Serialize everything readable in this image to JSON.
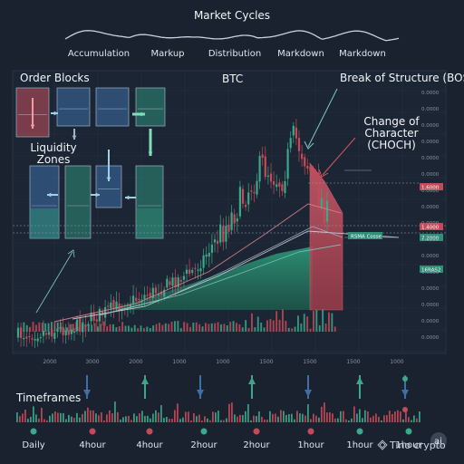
{
  "market_cycles": {
    "title": "Market Cycles",
    "phases": [
      "Accumulation",
      "Markup",
      "Distribution",
      "Markdown",
      "Markdown"
    ]
  },
  "labels": {
    "order_blocks": "Order Blocks",
    "liquidity_zones": "Liquidity\nZones",
    "asset": "BTC",
    "bos": "Break of Structure (BOS)",
    "choch": "Change of Character\n(CHOCH)",
    "timeframes": "Timeframes",
    "watermark": "Tino crypto",
    "ai_badge": "ai"
  },
  "colors": {
    "background": "#1a2230",
    "bull": "#3aa889",
    "bear": "#c44a57",
    "ob_red": "#c4515e",
    "ob_blue": "#3e6fa6",
    "ob_teal": "#2f8f78",
    "demand_fill": "#2b8a6e",
    "supply_fill": "#b54a59"
  },
  "price_axis": {
    "tick_labels": [
      "0.0000",
      "0.0000",
      "0.0000",
      "0.0000",
      "0.0000",
      "0.0000",
      "0.0000",
      "0.0000",
      "0.0000",
      "0.0000",
      "0.0000",
      "0.0000",
      "0.0000",
      "0.0000",
      "0.0000",
      "0.0000"
    ],
    "price_tags": [
      {
        "text": "1.6000",
        "color": "#c44a57"
      },
      {
        "text": "1.4000",
        "color": "#c44a57"
      },
      {
        "text": "7.2000",
        "color": "#2f8f78"
      },
      {
        "text": "16RAS2",
        "color": "#2f8f78"
      }
    ],
    "ema_tag": "RSMA Cosse"
  },
  "chart_data": {
    "type": "candlestick",
    "title": "BTC",
    "x_tick_labels": [
      "2000",
      "3000",
      "2000",
      "1000",
      "1000",
      "1500",
      "1500",
      "1500",
      "1000"
    ],
    "y_tick_labels": [
      "0.0000",
      "0.0000",
      "0.0000",
      "0.0000",
      "0.0000",
      "0.0000",
      "0.0000",
      "0.0000",
      "0.0000",
      "0.0000",
      "0.0000",
      "0.0000",
      "0.0000",
      "0.0000",
      "0.0000",
      "0.0000"
    ],
    "trend": "accumulation then markup rally, distribution top, then markdown",
    "grid": true
  },
  "timeframes": {
    "labels": [
      "Daily",
      "4hour",
      "4hour",
      "2hour",
      "2hour",
      "1hour",
      "1hour",
      "1hour"
    ],
    "dot_colors": [
      "#3aa889",
      "#c44a57",
      "#c44a57",
      "#3aa889",
      "#c44a57",
      "#c44a57",
      "#3aa889",
      "#3aa889"
    ],
    "signals": [
      {
        "dir": "down",
        "color": "#3e6fa6"
      },
      {
        "dir": "up",
        "color": "#3aa889"
      },
      {
        "dir": "down",
        "color": "#3e6fa6"
      },
      {
        "dir": "up",
        "color": "#3aa889"
      },
      {
        "dir": "down",
        "color": "#3e6fa6"
      },
      {
        "dir": "up",
        "color": "#3aa889"
      },
      {
        "dir": "down",
        "color": "#3e6fa6"
      },
      {
        "dir": "up",
        "color": "#3aa889"
      }
    ]
  }
}
